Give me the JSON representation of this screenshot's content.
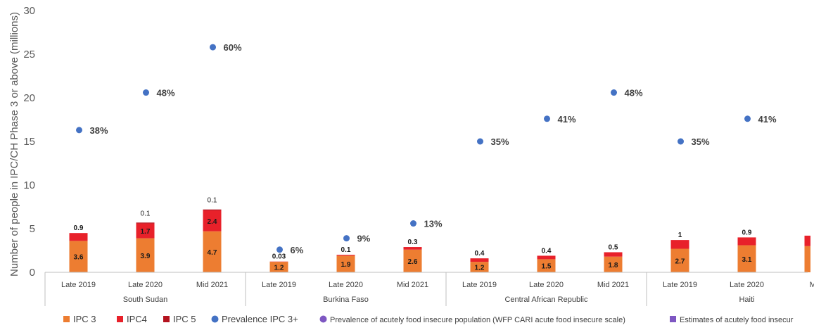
{
  "chart_data": {
    "type": "bar",
    "subtype": "stacked bar with overlaid scatter",
    "ylabel": "Number of people in IPC/CH Phase 3 or above (millions)",
    "ylim": [
      0,
      30
    ],
    "yticks": [
      0,
      5,
      10,
      15,
      20,
      25,
      30
    ],
    "grid": false,
    "legend_position": "bottom",
    "groups": [
      "South Sudan",
      "Burkina Faso",
      "Central African Republic",
      "Haiti"
    ],
    "categories": [
      {
        "group": "South Sudan",
        "label": "Late 2019"
      },
      {
        "group": "South Sudan",
        "label": "Late 2020"
      },
      {
        "group": "South Sudan",
        "label": "Mid 2021"
      },
      {
        "group": "Burkina Faso",
        "label": "Late 2019"
      },
      {
        "group": "Burkina Faso",
        "label": "Late 2020"
      },
      {
        "group": "Burkina Faso",
        "label": "Mid 2021"
      },
      {
        "group": "Central African Republic",
        "label": "Late 2019"
      },
      {
        "group": "Central African Republic",
        "label": "Late 2020"
      },
      {
        "group": "Central African Republic",
        "label": "Mid 2021"
      },
      {
        "group": "Haiti",
        "label": "Late 2019"
      },
      {
        "group": "Haiti",
        "label": "Late 2020"
      },
      {
        "group": "Haiti",
        "label": "Mi"
      }
    ],
    "series": [
      {
        "name": "IPC 3",
        "color": "#ED7D31",
        "values": [
          3.6,
          3.9,
          4.7,
          1.2,
          1.9,
          2.6,
          1.2,
          1.5,
          1.8,
          2.7,
          3.1,
          3.0
        ],
        "labels": [
          "3.6",
          "3.9",
          "4.7",
          "1.2",
          "1.9",
          "2.6",
          "1.2",
          "1.5",
          "1.8",
          "2.7",
          "3.1",
          ""
        ]
      },
      {
        "name": "IPC4",
        "color": "#E8212A",
        "values": [
          0.9,
          1.7,
          2.4,
          0.03,
          0.1,
          0.3,
          0.4,
          0.4,
          0.5,
          1.0,
          0.9,
          1.2
        ],
        "labels": [
          "0.9",
          "1.7",
          "2.4",
          "0.03",
          "0.1",
          "0.3",
          "0.4",
          "0.4",
          "0.5",
          "1",
          "0.9",
          ""
        ]
      },
      {
        "name": "IPC 5",
        "color": "#B4131F",
        "values": [
          0,
          0.1,
          0.1,
          0,
          0,
          0,
          0,
          0,
          0,
          0,
          0,
          0
        ],
        "labels": [
          "",
          "0.1",
          "0.1",
          "",
          "",
          "",
          "",
          "",
          "",
          "",
          "",
          ""
        ]
      },
      {
        "name": "Prevalence IPC 3+",
        "color": "#4472C4",
        "type": "scatter",
        "values": [
          16.3,
          20.6,
          25.8,
          2.6,
          3.9,
          5.6,
          15.0,
          17.6,
          20.6,
          15.0,
          17.6,
          null
        ],
        "labels": [
          "38%",
          "48%",
          "60%",
          "6%",
          "9%",
          "13%",
          "35%",
          "41%",
          "48%",
          "35%",
          "41%",
          ""
        ]
      }
    ],
    "extra_legend": [
      {
        "name": "Prevalence of acutely food insecure population (WFP CARI acute food insecure scale)",
        "color": "#7E57C2",
        "marker": "circle"
      },
      {
        "name": "Estimates of acutely food insecur",
        "color": "#7E57C2",
        "marker": "square"
      }
    ]
  }
}
